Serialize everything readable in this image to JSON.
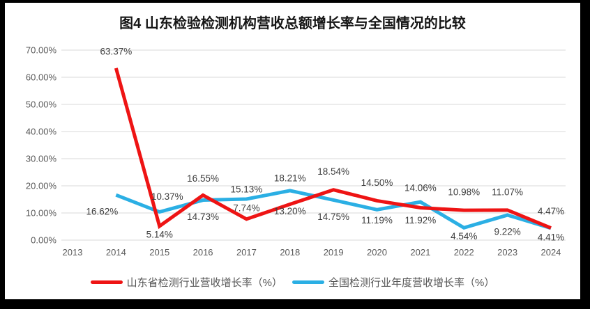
{
  "window": {
    "background": "#000000",
    "card_background": "#ffffff"
  },
  "chart_data": {
    "type": "line",
    "title": "图4  山东检验检测机构营收总额增长率与全国情况的比较",
    "categories": [
      "2013",
      "2014",
      "2015",
      "2016",
      "2017",
      "2018",
      "2019",
      "2020",
      "2021",
      "2022",
      "2023",
      "2024"
    ],
    "y_axis": {
      "min": 0,
      "max": 70,
      "step": 10,
      "tick_labels": [
        "70.00%",
        "60.00%",
        "50.00%",
        "40.00%",
        "30.00%",
        "20.00%",
        "10.00%",
        "0.00%"
      ],
      "grid": true,
      "grid_color": "#d9d9d9",
      "tick_color": "#595959"
    },
    "legend_position": "bottom",
    "data_label_color": "#3d3d3d",
    "series": [
      {
        "key": "shandong",
        "name": "山东省检测行业营收增长率（%）",
        "color": "#ee1414",
        "values": [
          null,
          63.37,
          5.14,
          16.55,
          7.74,
          13.2,
          18.54,
          14.5,
          11.92,
          10.98,
          11.07,
          4.47
        ],
        "labels": [
          null,
          "63.37%",
          "5.14%",
          "16.55%",
          "7.74%",
          "13.20%",
          "18.54%",
          "14.50%",
          "11.92%",
          "10.98%",
          "11.07%",
          "4.47%"
        ],
        "label_pos": [
          null,
          "above",
          "below",
          "above",
          "above",
          "below",
          "above",
          "above",
          "below",
          "above",
          "above",
          "above"
        ]
      },
      {
        "key": "national",
        "name": "全国检测行业年度营收增长率（%）",
        "color": "#2bafe4",
        "values": [
          null,
          16.62,
          10.37,
          14.73,
          15.13,
          18.21,
          14.75,
          11.19,
          14.06,
          4.54,
          9.22,
          4.41
        ],
        "labels": [
          null,
          "16.62%",
          "10.37%",
          "14.73%",
          "15.13%",
          "18.21%",
          "14.75%",
          "11.19%",
          "14.06%",
          "4.54%",
          "9.22%",
          "4.41%"
        ],
        "label_pos": [
          null,
          "below",
          "above",
          "below",
          "above",
          "above",
          "below",
          "below",
          "above",
          "below",
          "below",
          "below"
        ]
      }
    ]
  }
}
